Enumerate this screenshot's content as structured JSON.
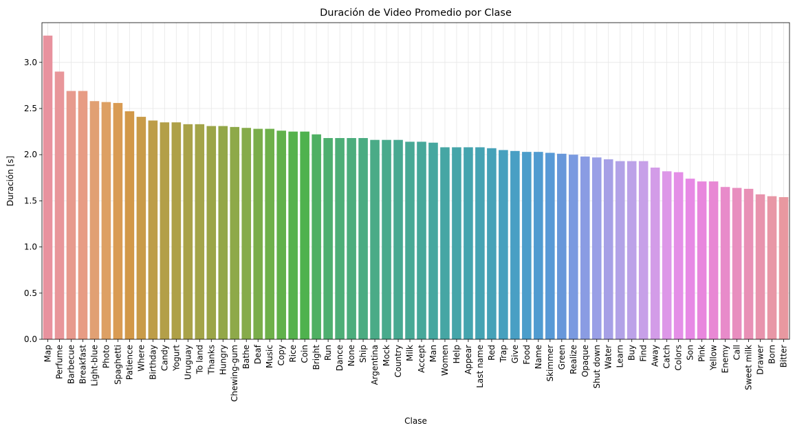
{
  "chart_data": {
    "type": "bar",
    "title": "Duración de Video Promedio por Clase",
    "xlabel": "Clase",
    "ylabel": "Duración [s]",
    "ylim": [
      0,
      3.43
    ],
    "yticks": [
      "0.0",
      "0.5",
      "1.0",
      "1.5",
      "2.0",
      "2.5",
      "3.0"
    ],
    "grid": true,
    "categories": [
      "Map",
      "Perfume",
      "Barbecue",
      "Breakfast",
      "Light-blue",
      "Photo",
      "Spaghetti",
      "Patience",
      "Where",
      "Birthday",
      "Candy",
      "Yogurt",
      "Uruguay",
      "To land",
      "Thanks",
      "Hungry",
      "Chewing-gum",
      "Bathe",
      "Deaf",
      "Music",
      "Copy",
      "Rice",
      "Coin",
      "Bright",
      "Run",
      "Dance",
      "None",
      "Ship",
      "Argentina",
      "Mock",
      "Country",
      "Milk",
      "Accept",
      "Man",
      "Women",
      "Help",
      "Appear",
      "Last name",
      "Red",
      "Trap",
      "Give",
      "Food",
      "Name",
      "Skimmer",
      "Green",
      "Realize",
      "Opaque",
      "Shut down",
      "Water",
      "Learn",
      "Buy",
      "Find",
      "Away",
      "Catch",
      "Colors",
      "Son",
      "Pink",
      "Yellow",
      "Enemy",
      "Call",
      "Sweet milk",
      "Drawer",
      "Born",
      "Bitter"
    ],
    "values": [
      3.29,
      2.9,
      2.69,
      2.69,
      2.58,
      2.57,
      2.56,
      2.47,
      2.41,
      2.37,
      2.35,
      2.35,
      2.33,
      2.33,
      2.31,
      2.31,
      2.3,
      2.29,
      2.28,
      2.28,
      2.26,
      2.25,
      2.25,
      2.22,
      2.18,
      2.18,
      2.18,
      2.18,
      2.16,
      2.16,
      2.16,
      2.14,
      2.14,
      2.13,
      2.08,
      2.08,
      2.08,
      2.08,
      2.07,
      2.05,
      2.04,
      2.03,
      2.03,
      2.02,
      2.01,
      2.0,
      1.98,
      1.97,
      1.95,
      1.93,
      1.93,
      1.93,
      1.86,
      1.82,
      1.81,
      1.74,
      1.71,
      1.71,
      1.65,
      1.64,
      1.63,
      1.57,
      1.55,
      1.54
    ],
    "colors": [
      "#e8929e",
      "#e8969a",
      "#e79a8d",
      "#e79c84",
      "#e1a073",
      "#dda064",
      "#d99b53",
      "#d29848",
      "#c99b48",
      "#bd9d49",
      "#b39f48",
      "#aea047",
      "#a9a249",
      "#a3a449",
      "#9ba548",
      "#93a748",
      "#8ea949",
      "#86ab4a",
      "#7aad4a",
      "#6eb04a",
      "#60b14b",
      "#56b24d",
      "#4fb24e",
      "#4fb063",
      "#4eaf6f",
      "#4dae77",
      "#4cad7d",
      "#4bac82",
      "#4aab87",
      "#49aa8c",
      "#48a991",
      "#48a995",
      "#47a89a",
      "#46a79f",
      "#46a6a4",
      "#45a5a9",
      "#45a4ae",
      "#45a3b3",
      "#46a2b8",
      "#47a0be",
      "#499fc4",
      "#4c9dca",
      "#509bd0",
      "#5899d6",
      "#6897da",
      "#7a9ae0",
      "#8a9ce3",
      "#999fe6",
      "#a6a0e6",
      "#b2a2e7",
      "#bca2e8",
      "#c7a0e8",
      "#d39ce8",
      "#dd97e8",
      "#e48fe7",
      "#e789e5",
      "#e887dd",
      "#e888d4",
      "#e88bca",
      "#e88ebf",
      "#e890b6",
      "#e893ad",
      "#e897a6",
      "#e898a0"
    ]
  }
}
